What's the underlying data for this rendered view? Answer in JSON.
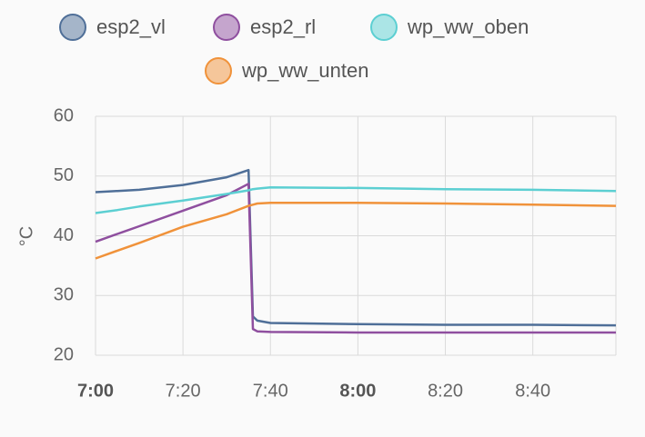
{
  "chart_data": {
    "type": "line",
    "ylabel": "°C",
    "x": [
      "7:00",
      "7:05",
      "7:10",
      "7:20",
      "7:30",
      "7:35",
      "7:36",
      "7:37",
      "7:40",
      "8:00",
      "8:20",
      "8:40",
      "8:59"
    ],
    "series": [
      {
        "name": "esp2_vl",
        "color": "#4f6f98",
        "values": [
          47.3,
          47.5,
          47.7,
          48.5,
          49.8,
          51,
          26.5,
          25.8,
          25.4,
          25.2,
          25.1,
          25.1,
          25.0
        ]
      },
      {
        "name": "esp2_rl",
        "color": "#8f4f9f",
        "values": [
          39,
          40.3,
          41.6,
          44.2,
          46.8,
          48.7,
          24.4,
          24.0,
          23.9,
          23.8,
          23.8,
          23.8,
          23.8
        ]
      },
      {
        "name": "wp_ww_oben",
        "color": "#5ccfd2",
        "values": [
          43.8,
          44.3,
          44.9,
          45.9,
          47,
          47.6,
          47.8,
          47.9,
          48.1,
          48,
          47.8,
          47.7,
          47.5
        ]
      },
      {
        "name": "wp_ww_unten",
        "color": "#f0923a",
        "values": [
          36.2,
          37.5,
          38.8,
          41.5,
          43.6,
          45,
          45.2,
          45.4,
          45.5,
          45.5,
          45.4,
          45.2,
          45
        ]
      }
    ],
    "xlim": [
      "7:00",
      "8:59"
    ],
    "xticks": [
      "7:00",
      "7:20",
      "7:40",
      "8:00",
      "8:20",
      "8:40"
    ],
    "ylim": [
      20,
      60
    ],
    "yticks": [
      20,
      30,
      40,
      50,
      60
    ],
    "grid": true
  }
}
